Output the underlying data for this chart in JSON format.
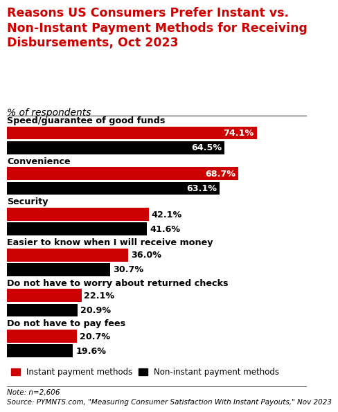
{
  "title": "Reasons US Consumers Prefer Instant vs.\nNon-Instant Payment Methods for Receiving\nDisbursements, Oct 2023",
  "subtitle": "% of respondents",
  "title_color": "#cc0000",
  "background_color": "#ffffff",
  "categories": [
    "Speed/guarantee of good funds",
    "Convenience",
    "Security",
    "Easier to know when I will receive money",
    "Do not have to worry about returned checks",
    "Do not have to pay fees"
  ],
  "instant_values": [
    74.1,
    68.7,
    42.1,
    36.0,
    22.1,
    20.7
  ],
  "noninstant_values": [
    64.5,
    63.1,
    41.6,
    30.7,
    20.9,
    19.6
  ],
  "instant_color": "#cc0000",
  "noninstant_color": "#000000",
  "legend_label_instant": "Instant payment methods",
  "legend_label_noninstant": "Non-instant payment methods",
  "note": "Note: n=2,606\nSource: PYMNTS.com, \"Measuring Consumer Satisfaction With Instant Payouts,\" Nov 2023",
  "xlim": [
    0,
    85
  ],
  "title_fontsize": 12.5,
  "subtitle_fontsize": 10,
  "category_fontsize": 9.2,
  "label_fontsize": 9.2
}
